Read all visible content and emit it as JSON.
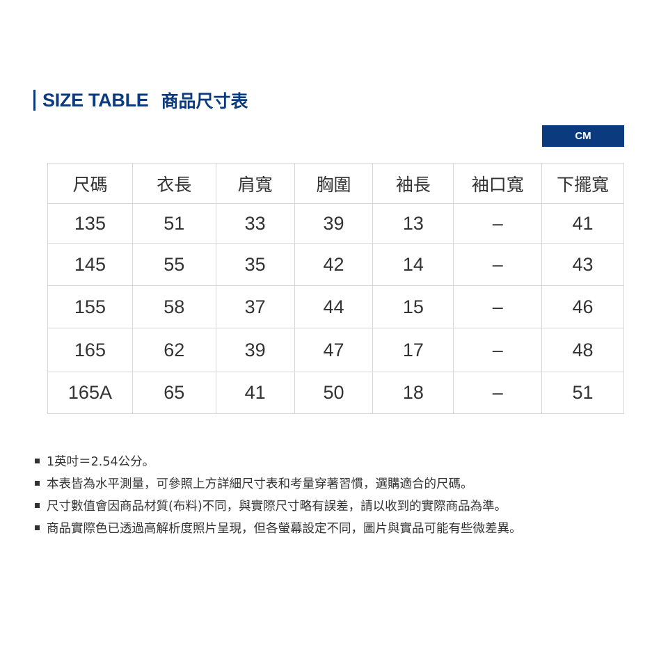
{
  "title": {
    "en": "SIZE TABLE",
    "zh": "商品尺寸表"
  },
  "unit": "CM",
  "table": {
    "headers": [
      "尺碼",
      "衣長",
      "肩寬",
      "胸圍",
      "袖長",
      "袖口寬",
      "下擺寬"
    ],
    "rows": [
      [
        "135",
        "51",
        "33",
        "39",
        "13",
        "–",
        "41"
      ],
      [
        "145",
        "55",
        "35",
        "42",
        "14",
        "–",
        "43"
      ],
      [
        "155",
        "58",
        "37",
        "44",
        "15",
        "–",
        "46"
      ],
      [
        "165",
        "62",
        "39",
        "47",
        "17",
        "–",
        "48"
      ],
      [
        "165A",
        "65",
        "41",
        "50",
        "18",
        "–",
        "51"
      ]
    ]
  },
  "notes": [
    "1英吋＝2.54公分。",
    "本表皆為水平測量，可參照上方詳細尺寸表和考量穿著習慣，選購適合的尺碼。",
    "尺寸數值會因商品材質(布料)不同，與實際尺寸略有誤差，請以收到的實際商品為準。",
    "商品實際色已透過高解析度照片呈現，但各螢幕設定不同，圖片與實品可能有些微差異。"
  ],
  "colors": {
    "brand": "#0b3a7e"
  }
}
